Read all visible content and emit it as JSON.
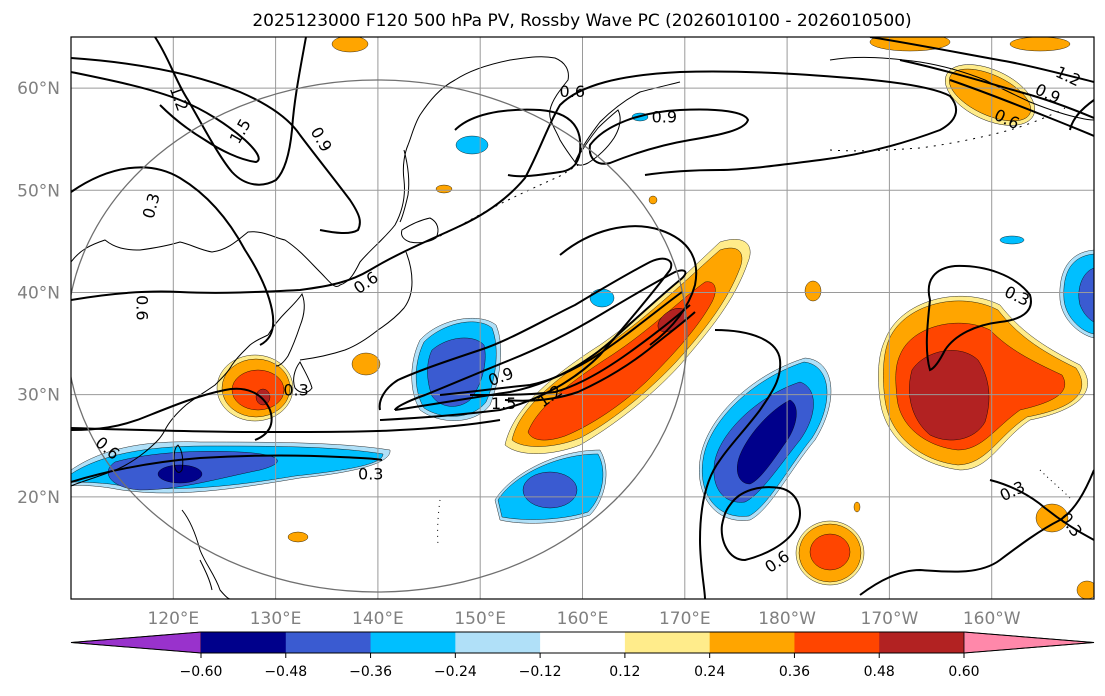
{
  "title": "2025123000 F120 500 hPa PV, Rossby Wave PC (2026010100 - 2026010500)",
  "map": {
    "lon_range_east": [
      110,
      210
    ],
    "lat_range": [
      10,
      65
    ],
    "lat_ticks": [
      {
        "lat": 60,
        "label": "60°N"
      },
      {
        "lat": 50,
        "label": "50°N"
      },
      {
        "lat": 40,
        "label": "40°N"
      },
      {
        "lat": 30,
        "label": "30°N"
      },
      {
        "lat": 20,
        "label": "20°N"
      }
    ],
    "lon_ticks": [
      {
        "lon": 120,
        "label": "120°E"
      },
      {
        "lon": 130,
        "label": "130°E"
      },
      {
        "lon": 140,
        "label": "140°E"
      },
      {
        "lon": 150,
        "label": "150°E"
      },
      {
        "lon": 160,
        "label": "160°E"
      },
      {
        "lon": 170,
        "label": "170°E"
      },
      {
        "lon": 180,
        "label": "180°W"
      },
      {
        "lon": 190,
        "label": "170°W"
      },
      {
        "lon": 200,
        "label": "160°W"
      }
    ],
    "grid": true
  },
  "colorbar": {
    "ticks": [
      "−0.60",
      "−0.48",
      "−0.36",
      "−0.24",
      "−0.12",
      "0.12",
      "0.24",
      "0.36",
      "0.48",
      "0.60"
    ],
    "levels": [
      -0.6,
      -0.48,
      -0.36,
      -0.24,
      -0.12,
      0.12,
      0.24,
      0.36,
      0.48,
      0.6
    ],
    "colors": [
      "#9932cc",
      "#00008b",
      "#3a5bd1",
      "#00bfff",
      "#b0e0f8",
      "#ffffff",
      "#ffec8b",
      "#ffa500",
      "#ff4500",
      "#b22222",
      "#ff88aa"
    ]
  },
  "contour_labels": [
    {
      "text": "1.2",
      "lon": 120.6,
      "lat": 59.0,
      "rot": 70
    },
    {
      "text": "1.5",
      "lon": 126.5,
      "lat": 55.8,
      "rot": -60
    },
    {
      "text": "0.9",
      "lon": 134.5,
      "lat": 55.0,
      "rot": 60
    },
    {
      "text": "0.3",
      "lon": 117.8,
      "lat": 48.5,
      "rot": -75
    },
    {
      "text": "0.6",
      "lon": 138.8,
      "lat": 41.0,
      "rot": -35
    },
    {
      "text": "0.6",
      "lon": 117.0,
      "lat": 38.5,
      "rot": 90
    },
    {
      "text": "0.3",
      "lon": 132.0,
      "lat": 30.5,
      "rot": 0
    },
    {
      "text": "0.6",
      "lon": 113.6,
      "lat": 24.8,
      "rot": 40
    },
    {
      "text": "0.3",
      "lon": 139.3,
      "lat": 22.3,
      "rot": 0
    },
    {
      "text": "0.6",
      "lon": 159.0,
      "lat": 59.7,
      "rot": 0
    },
    {
      "text": "0.9",
      "lon": 168.0,
      "lat": 57.2,
      "rot": 0
    },
    {
      "text": "0.9",
      "lon": 152.0,
      "lat": 31.8,
      "rot": -20
    },
    {
      "text": "1.5",
      "lon": 152.3,
      "lat": 29.2,
      "rot": 0
    },
    {
      "text": "1.2",
      "lon": 156.8,
      "lat": 29.9,
      "rot": -35
    },
    {
      "text": "0.3",
      "lon": 202.5,
      "lat": 39.7,
      "rot": 25
    },
    {
      "text": "1.2",
      "lon": 207.5,
      "lat": 61.2,
      "rot": 25
    },
    {
      "text": "0.9",
      "lon": 205.5,
      "lat": 59.5,
      "rot": 25
    },
    {
      "text": "0.6",
      "lon": 201.5,
      "lat": 57.0,
      "rot": 25
    },
    {
      "text": "0.3",
      "lon": 202.0,
      "lat": 20.6,
      "rot": -25
    },
    {
      "text": "0.3",
      "lon": 207.8,
      "lat": 17.3,
      "rot": 55
    },
    {
      "text": "0.6",
      "lon": 179.0,
      "lat": 13.7,
      "rot": -35
    }
  ]
}
